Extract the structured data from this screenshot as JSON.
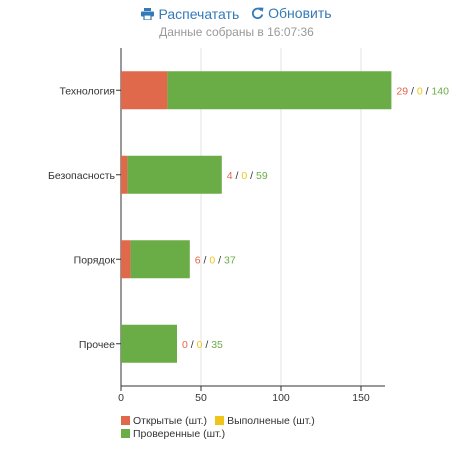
{
  "toolbar": {
    "print_label": "Распечатать",
    "refresh_label": "Обновить"
  },
  "subtitle": "Данные собраны в 16:07:36",
  "colors": {
    "open": "#e0684b",
    "done": "#f0c419",
    "verified": "#6aac46"
  },
  "legend": {
    "open": "Открытые (шт.)",
    "done": "Выполненые (шт.)",
    "verified": "Проверенные (шт.)"
  },
  "chart_data": {
    "type": "bar",
    "orientation": "horizontal",
    "stacked": true,
    "categories": [
      "Технология",
      "Безопасность",
      "Порядок",
      "Прочее"
    ],
    "series": [
      {
        "name": "Открытые (шт.)",
        "values": [
          29,
          4,
          6,
          0
        ]
      },
      {
        "name": "Выполненые (шт.)",
        "values": [
          0,
          0,
          0,
          0
        ]
      },
      {
        "name": "Проверенные (шт.)",
        "values": [
          140,
          59,
          37,
          35
        ]
      }
    ],
    "data_labels": [
      "29 / 0 / 140",
      "4 / 0 / 59",
      "6 / 0 / 37",
      "0 / 0 / 35"
    ],
    "xlim": [
      0,
      165
    ],
    "xticks": [
      0,
      50,
      100,
      150
    ],
    "grid": true,
    "legend_position": "bottom-left"
  }
}
